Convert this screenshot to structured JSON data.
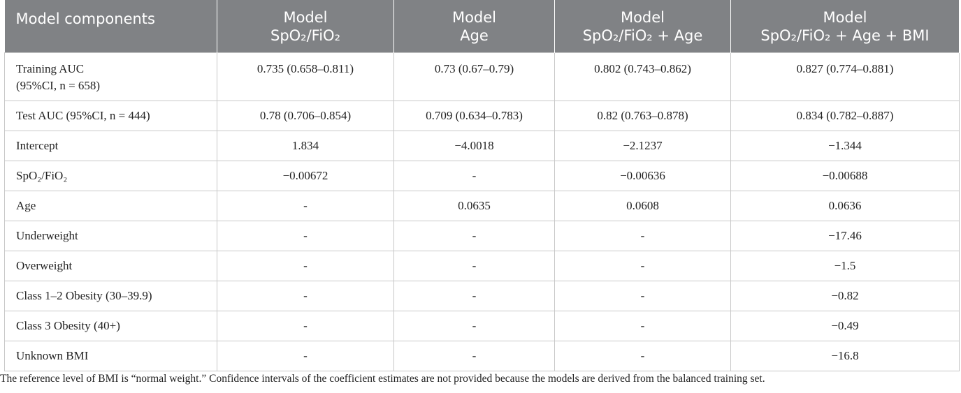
{
  "table": {
    "header": [
      [
        "Model components"
      ],
      [
        "Model",
        "SpO₂/FiO₂"
      ],
      [
        "Model",
        "Age"
      ],
      [
        "Model",
        "SpO₂/FiO₂ + Age"
      ],
      [
        "Model",
        "SpO₂/FiO₂ + Age + BMI"
      ]
    ],
    "rows": [
      [
        [
          "Training AUC",
          "(95%CI, n = 658)"
        ],
        "0.735 (0.658–0.811)",
        "0.73 (0.67–0.79)",
        "0.802 (0.743–0.862)",
        "0.827 (0.774–0.881)"
      ],
      [
        "Test AUC (95%CI, n = 444)",
        "0.78 (0.706–0.854)",
        "0.709 (0.634–0.783)",
        "0.82 (0.763–0.878)",
        "0.834 (0.782–0.887)"
      ],
      [
        "Intercept",
        "1.834",
        "−4.0018",
        "−2.1237",
        "−1.344"
      ],
      [
        "SpO₂/FiO₂",
        "−0.00672",
        "-",
        "−0.00636",
        "−0.00688"
      ],
      [
        "Age",
        "-",
        "0.0635",
        "0.0608",
        "0.0636"
      ],
      [
        "Underweight",
        "-",
        "-",
        "-",
        "−17.46"
      ],
      [
        "Overweight",
        "-",
        "-",
        "-",
        "−1.5"
      ],
      [
        "Class 1–2 Obesity (30–39.9)",
        "-",
        "-",
        "-",
        "−0.82"
      ],
      [
        "Class 3 Obesity (40+)",
        "-",
        "-",
        "-",
        "−0.49"
      ],
      [
        "Unknown BMI",
        "-",
        "-",
        "-",
        "−16.8"
      ]
    ]
  },
  "footnote": "The reference level of BMI is “normal weight.” Confidence intervals of the coefficient estimates are not provided because the models are derived from the balanced training set."
}
